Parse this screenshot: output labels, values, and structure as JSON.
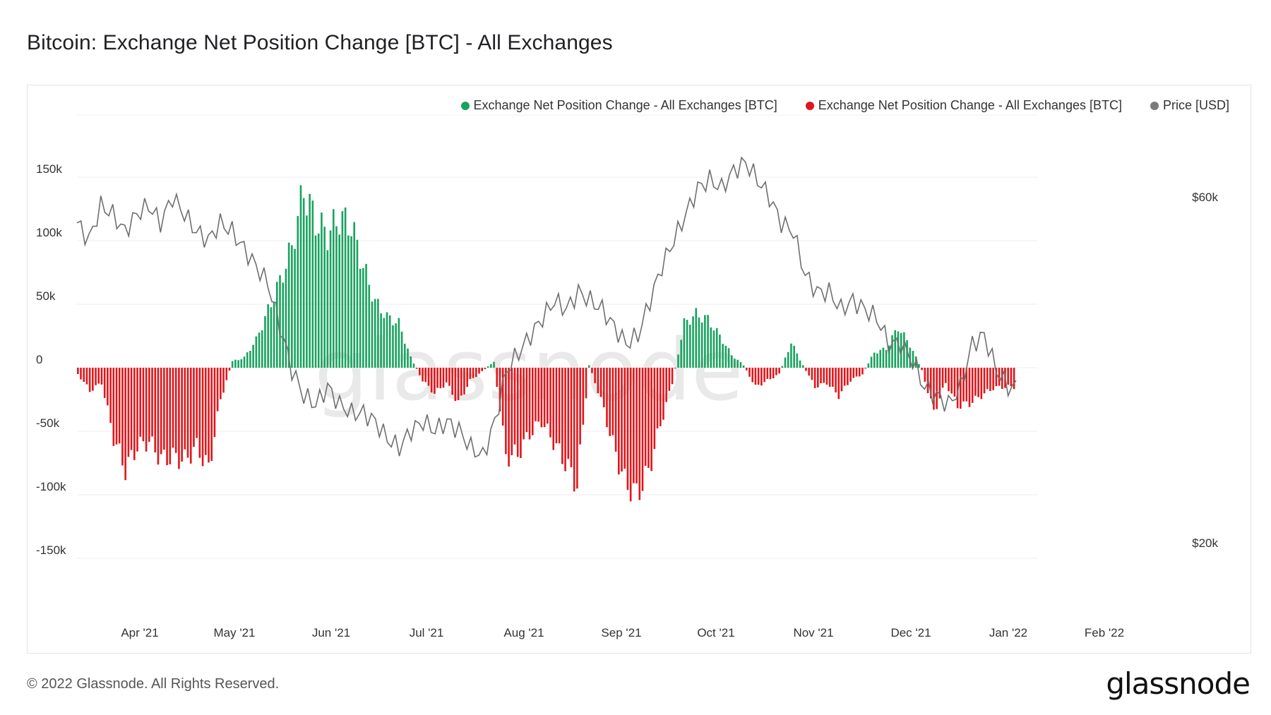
{
  "title": "Bitcoin: Exchange Net Position Change [BTC] - All Exchanges",
  "footer": "© 2022 Glassnode. All Rights Reserved.",
  "brand": "glassnode",
  "watermark": "glassnode",
  "colors": {
    "positive": "#19a25f",
    "negative": "#e0161b",
    "price": "#6f6f6f",
    "grid": "#ececec",
    "axis": "#333333"
  },
  "legend": [
    {
      "label": "Exchange Net Position Change - All Exchanges [BTC]",
      "color": "#19a25f"
    },
    {
      "label": "Exchange Net Position Change - All Exchanges [BTC]",
      "color": "#e0161b"
    },
    {
      "label": "Price [USD]",
      "color": "#7a7a7a"
    }
  ],
  "chart_data": {
    "type": "bar",
    "left_axis": {
      "ticks": [
        "150k",
        "100k",
        "50k",
        "0",
        "-50k",
        "-100k",
        "-150k"
      ],
      "range": [
        -150000,
        150000
      ]
    },
    "right_axis": {
      "ticks": [
        "$60k",
        "$20k"
      ],
      "range_usd": [
        20000,
        66000
      ]
    },
    "x_axis": {
      "ticks": [
        "Apr '21",
        "May '21",
        "Jun '21",
        "Jul '21",
        "Aug '21",
        "Sep '21",
        "Oct '21",
        "Nov '21",
        "Dec '21",
        "Jan '22",
        "Feb '22"
      ]
    },
    "series": [
      {
        "name": "Exchange Net Position Change - All Exchanges [BTC]",
        "kind": "bars",
        "weekly_values": [
          -5000,
          -18000,
          -12000,
          -55000,
          -80000,
          -62000,
          -58000,
          -72000,
          -70000,
          -73000,
          -62000,
          -80000,
          -25000,
          5000,
          8000,
          22000,
          45000,
          68000,
          95000,
          140000,
          115000,
          105000,
          118000,
          112000,
          80000,
          52000,
          40000,
          35000,
          8000,
          -10000,
          -20000,
          -12000,
          -28000,
          -10000,
          -3000,
          5000,
          -70000,
          -68000,
          -52000,
          -42000,
          -58000,
          -75000,
          -92000,
          2000,
          -25000,
          -60000,
          -90000,
          -100000,
          -82000,
          -45000,
          -12000,
          35000,
          42000,
          38000,
          25000,
          10000,
          2000,
          -15000,
          -10000,
          -5000,
          20000,
          2000,
          -15000,
          -12000,
          -22000,
          -10000,
          -5000,
          12000,
          15000,
          32000,
          18000,
          -2000,
          -35000,
          -12000,
          -30000,
          -28000,
          -22000,
          -16000,
          -15000
        ]
      },
      {
        "name": "Price [USD]",
        "kind": "line",
        "weekly_values": [
          57000,
          55000,
          59000,
          58000,
          56000,
          58000,
          59000,
          57000,
          60000,
          58000,
          56000,
          55000,
          57000,
          56000,
          54000,
          52000,
          50000,
          45000,
          40000,
          37000,
          36000,
          38000,
          36000,
          35000,
          35000,
          34000,
          32000,
          31000,
          33000,
          34000,
          33000,
          34000,
          33000,
          31000,
          30000,
          34000,
          40000,
          42000,
          44000,
          46000,
          48000,
          47000,
          49000,
          48000,
          47000,
          45000,
          43000,
          44000,
          48000,
          52000,
          55000,
          58000,
          61000,
          62000,
          61000,
          63000,
          64000,
          62000,
          60000,
          57000,
          56000,
          51000,
          49000,
          49000,
          47000,
          48000,
          47000,
          46000,
          43000,
          43000,
          41000,
          38000,
          37000,
          36000,
          38000,
          43000,
          44000,
          40000,
          38000
        ]
      }
    ]
  }
}
